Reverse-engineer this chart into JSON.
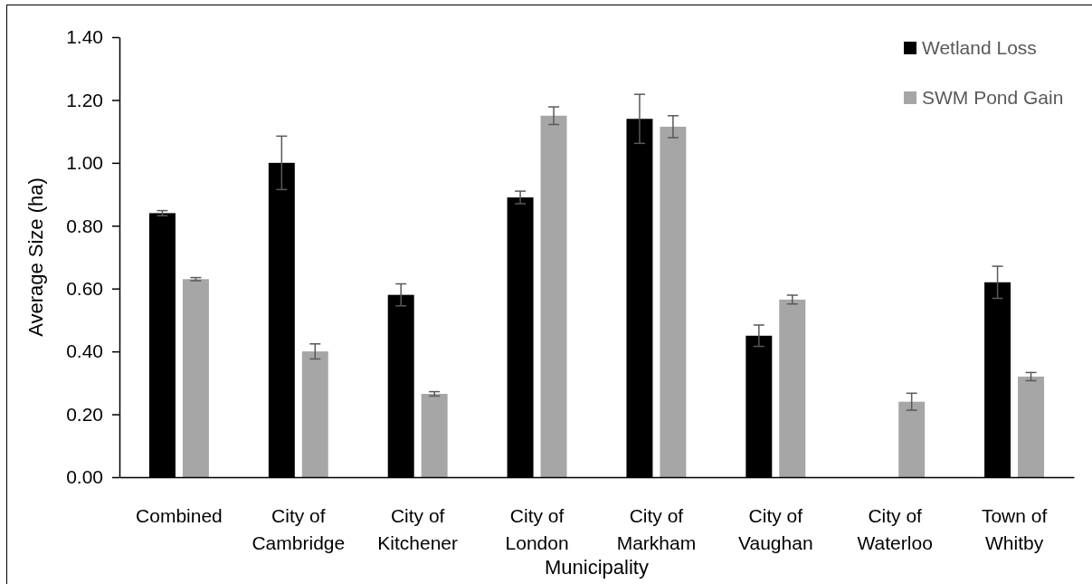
{
  "chart_data": {
    "type": "bar",
    "xlabel": "Municipality",
    "ylabel": "Average Size (ha)",
    "categories": [
      "Combined",
      "City of Cambridge",
      "City of Kitchener",
      "City of London",
      "City of Markham",
      "City of Vaughan",
      "City of Waterloo",
      "Town of Whitby"
    ],
    "series": [
      {
        "name": "Wetland Loss",
        "color": "#000000",
        "values": [
          0.84,
          1.0,
          0.58,
          0.89,
          1.14,
          0.45,
          null,
          0.62
        ],
        "errors": [
          0.008,
          0.085,
          0.035,
          0.02,
          0.078,
          0.034,
          null,
          0.051
        ]
      },
      {
        "name": "SWM Pond Gain",
        "color": "#a6a6a6",
        "values": [
          0.63,
          0.4,
          0.265,
          1.15,
          1.115,
          0.565,
          0.24,
          0.32
        ],
        "errors": [
          0.005,
          0.024,
          0.007,
          0.028,
          0.035,
          0.014,
          0.027,
          0.013
        ]
      }
    ],
    "ylim": [
      0,
      1.4
    ],
    "yticks": [
      {
        "value": 0,
        "label": "0.00"
      },
      {
        "value": 0.2,
        "label": "0.20"
      },
      {
        "value": 0.4,
        "label": "0.40"
      },
      {
        "value": 0.6,
        "label": "0.60"
      },
      {
        "value": 0.8,
        "label": "0.80"
      },
      {
        "value": 1.0,
        "label": "1.00"
      },
      {
        "value": 1.2,
        "label": "1.20"
      },
      {
        "value": 1.4,
        "label": "1.40"
      }
    ],
    "legend": "top right"
  }
}
